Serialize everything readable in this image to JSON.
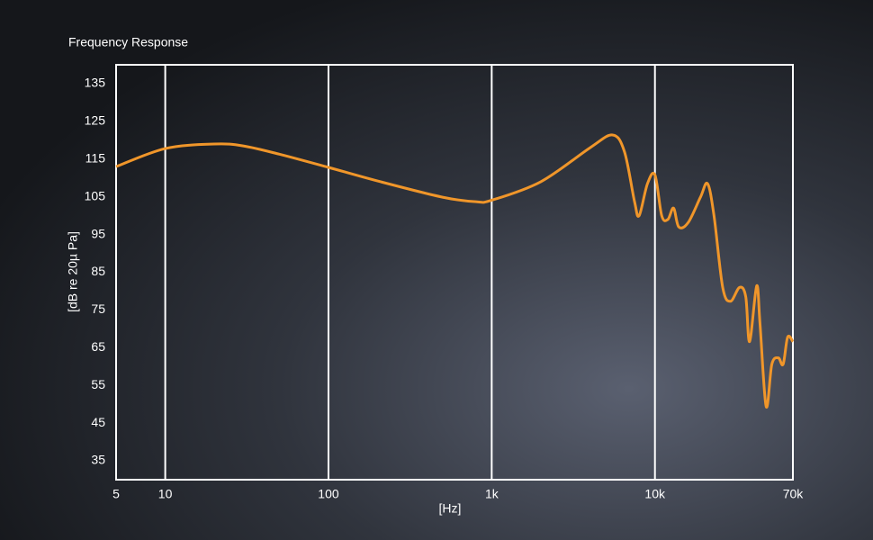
{
  "chart_data": {
    "type": "line",
    "title": "Frequency Response",
    "x_label": "[Hz]",
    "y_label": "[dB re 20µ Pa]",
    "x_scale": "log",
    "grid": true,
    "xlim": [
      5,
      70000
    ],
    "xticks": [
      5,
      10,
      100,
      {
        "value": 1000,
        "label": "1k"
      },
      {
        "value": 10000,
        "label": "10k"
      },
      {
        "value": 70000,
        "label": "70k"
      }
    ],
    "ylim": [
      30,
      140
    ],
    "yticks": [
      35,
      45,
      55,
      65,
      75,
      85,
      95,
      105,
      115,
      125,
      135
    ],
    "x": [
      5,
      10,
      20,
      30,
      50,
      100,
      200,
      500,
      800,
      1000,
      2000,
      4000,
      5500,
      6500,
      7500,
      8000,
      9000,
      10000,
      11000,
      12000,
      13000,
      14000,
      16000,
      19000,
      21000,
      23000,
      26000,
      29000,
      33000,
      36000,
      38000,
      42000,
      44000,
      48000,
      52000,
      57000,
      61000,
      65000,
      70000
    ],
    "series": [
      {
        "color": "#f0962a",
        "values": [
          113,
          117.8,
          119,
          118.5,
          116.3,
          112.8,
          109.2,
          104.9,
          103.7,
          104.1,
          109,
          118,
          121.4,
          117,
          103.7,
          100,
          108.5,
          110.8,
          100,
          99,
          102,
          97,
          98.2,
          104.9,
          108.5,
          100,
          81,
          77.3,
          81,
          78.5,
          66.6,
          81.4,
          71.4,
          49.4,
          60.6,
          62.3,
          60.6,
          67.8,
          66.6
        ]
      }
    ]
  }
}
